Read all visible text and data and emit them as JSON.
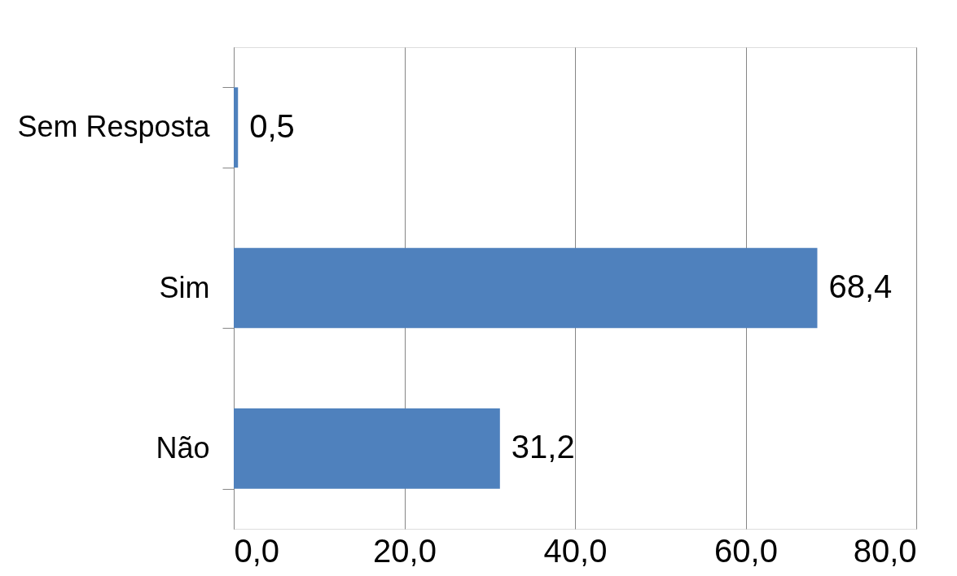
{
  "chart_data": {
    "type": "bar",
    "orientation": "horizontal",
    "categories": [
      "Sem Resposta",
      "Sim",
      "Não"
    ],
    "values": [
      0.5,
      68.4,
      31.2
    ],
    "value_labels": [
      "0,5",
      "68,4",
      "31,2"
    ],
    "color": "#4f81bd",
    "xlim": [
      0,
      80
    ],
    "xticks": [
      {
        "value": 0,
        "label": "0,0"
      },
      {
        "value": 20,
        "label": "20,0"
      },
      {
        "value": 40,
        "label": "40,0"
      },
      {
        "value": 60,
        "label": "60,0"
      },
      {
        "value": 80,
        "label": "80,0"
      }
    ],
    "grid": "x"
  }
}
